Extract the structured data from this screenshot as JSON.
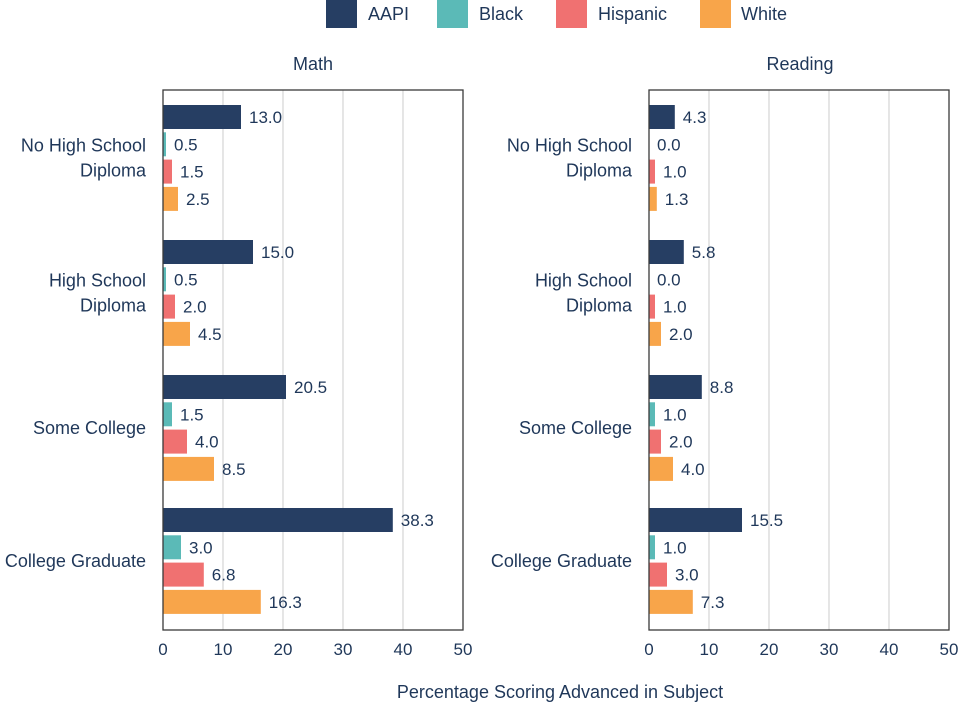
{
  "chart_data": {
    "type": "bar",
    "orientation": "horizontal",
    "xlabel": "Percentage Scoring Advanced in Subject",
    "xlim": [
      0,
      50
    ],
    "xticks": [
      0,
      10,
      20,
      30,
      40,
      50
    ],
    "grid": "vertical",
    "legend": {
      "placement": "top-center",
      "entries": [
        {
          "name": "AAPI",
          "color": "#263e63"
        },
        {
          "name": "Black",
          "color": "#5bbab7"
        },
        {
          "name": "Hispanic",
          "color": "#f07171"
        },
        {
          "name": "White",
          "color": "#f8a54a"
        }
      ]
    },
    "categories": [
      [
        "No High School",
        "Diploma"
      ],
      [
        "High School",
        "Diploma"
      ],
      [
        "Some College"
      ],
      [
        "College Graduate"
      ]
    ],
    "panels": [
      {
        "title": "Math",
        "series": [
          {
            "name": "AAPI",
            "values": [
              13.0,
              15.0,
              20.5,
              38.3
            ]
          },
          {
            "name": "Black",
            "values": [
              0.5,
              0.5,
              1.5,
              3.0
            ]
          },
          {
            "name": "Hispanic",
            "values": [
              1.5,
              2.0,
              4.0,
              6.8
            ]
          },
          {
            "name": "White",
            "values": [
              2.5,
              4.5,
              8.5,
              16.3
            ]
          }
        ]
      },
      {
        "title": "Reading",
        "series": [
          {
            "name": "AAPI",
            "values": [
              4.3,
              5.8,
              8.8,
              15.5
            ]
          },
          {
            "name": "Black",
            "values": [
              0.0,
              0.0,
              1.0,
              1.0
            ]
          },
          {
            "name": "Hispanic",
            "values": [
              1.0,
              1.0,
              2.0,
              3.0
            ]
          },
          {
            "name": "White",
            "values": [
              1.3,
              2.0,
              4.0,
              7.3
            ]
          }
        ]
      }
    ]
  }
}
